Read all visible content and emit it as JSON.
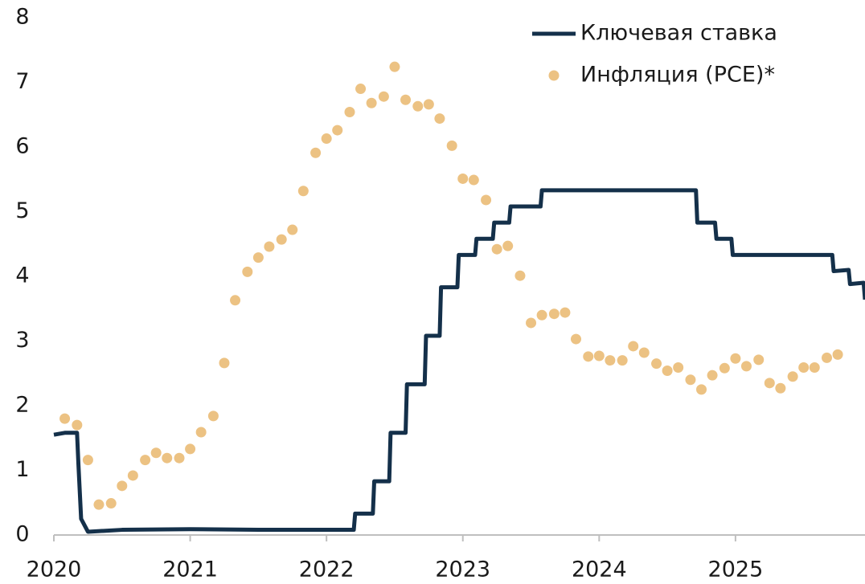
{
  "chart_data": {
    "type": "line",
    "xlim": [
      2020,
      2025.95
    ],
    "xticks": [
      2020,
      2021,
      2022,
      2023,
      2024,
      2025
    ],
    "ylim": [
      0,
      8
    ],
    "yticks": [
      0,
      1,
      2,
      3,
      4,
      5,
      6,
      7,
      8
    ],
    "legend": "top-right",
    "series": [
      {
        "name": "Ключевая ставка",
        "type": "line",
        "color": "#14304a",
        "x": [
          2020.0,
          2020.08,
          2020.17,
          2020.18,
          2020.2,
          2020.25,
          2020.5,
          2021.0,
          2021.5,
          2022.2,
          2022.21,
          2022.34,
          2022.35,
          2022.46,
          2022.47,
          2022.58,
          2022.59,
          2022.72,
          2022.73,
          2022.83,
          2022.84,
          2022.96,
          2022.97,
          2023.09,
          2023.1,
          2023.22,
          2023.23,
          2023.34,
          2023.35,
          2023.57,
          2023.58,
          2024.71,
          2024.72,
          2024.85,
          2024.86,
          2024.97,
          2024.98,
          2025.71,
          2025.72,
          2025.83,
          2025.84,
          2025.94,
          2025.95
        ],
        "values": [
          1.55,
          1.58,
          1.58,
          1.1,
          0.25,
          0.05,
          0.08,
          0.09,
          0.08,
          0.08,
          0.33,
          0.33,
          0.83,
          0.83,
          1.58,
          1.58,
          2.33,
          2.33,
          3.08,
          3.08,
          3.83,
          3.83,
          4.33,
          4.33,
          4.58,
          4.58,
          4.83,
          4.83,
          5.08,
          5.08,
          5.33,
          5.33,
          4.83,
          4.83,
          4.58,
          4.58,
          4.33,
          4.33,
          4.08,
          4.1,
          3.88,
          3.9,
          3.64
        ]
      },
      {
        "name": "Инфляция (PCE)*",
        "type": "scatter",
        "color": "#ecc283",
        "x": [
          2020.08,
          2020.17,
          2020.25,
          2020.33,
          2020.42,
          2020.5,
          2020.58,
          2020.67,
          2020.75,
          2020.83,
          2020.92,
          2021.0,
          2021.08,
          2021.17,
          2021.25,
          2021.33,
          2021.42,
          2021.5,
          2021.58,
          2021.67,
          2021.75,
          2021.83,
          2021.92,
          2022.0,
          2022.08,
          2022.17,
          2022.25,
          2022.33,
          2022.42,
          2022.5,
          2022.58,
          2022.67,
          2022.75,
          2022.83,
          2022.92,
          2023.0,
          2023.08,
          2023.17,
          2023.25,
          2023.33,
          2023.42,
          2023.5,
          2023.58,
          2023.67,
          2023.75,
          2023.83,
          2023.92,
          2024.0,
          2024.08,
          2024.17,
          2024.25,
          2024.33,
          2024.42,
          2024.5,
          2024.58,
          2024.67,
          2024.75,
          2024.83,
          2024.92,
          2025.0,
          2025.08,
          2025.17,
          2025.25,
          2025.33,
          2025.42,
          2025.5,
          2025.58,
          2025.67,
          2025.75
        ],
        "values": [
          1.8,
          1.7,
          1.16,
          0.47,
          0.49,
          0.76,
          0.92,
          1.16,
          1.27,
          1.19,
          1.19,
          1.33,
          1.59,
          1.84,
          2.66,
          3.63,
          4.07,
          4.29,
          4.46,
          4.57,
          4.72,
          5.32,
          5.91,
          6.13,
          6.26,
          6.54,
          6.9,
          6.68,
          6.78,
          7.24,
          6.73,
          6.63,
          6.66,
          6.44,
          6.02,
          5.51,
          5.49,
          5.18,
          4.42,
          4.47,
          4.01,
          3.28,
          3.4,
          3.42,
          3.44,
          3.03,
          2.76,
          2.77,
          2.7,
          2.7,
          2.92,
          2.82,
          2.65,
          2.54,
          2.59,
          2.4,
          2.25,
          2.47,
          2.58,
          2.73,
          2.61,
          2.71,
          2.35,
          2.27,
          2.45,
          2.59,
          2.59,
          2.74,
          2.79
        ]
      }
    ]
  }
}
